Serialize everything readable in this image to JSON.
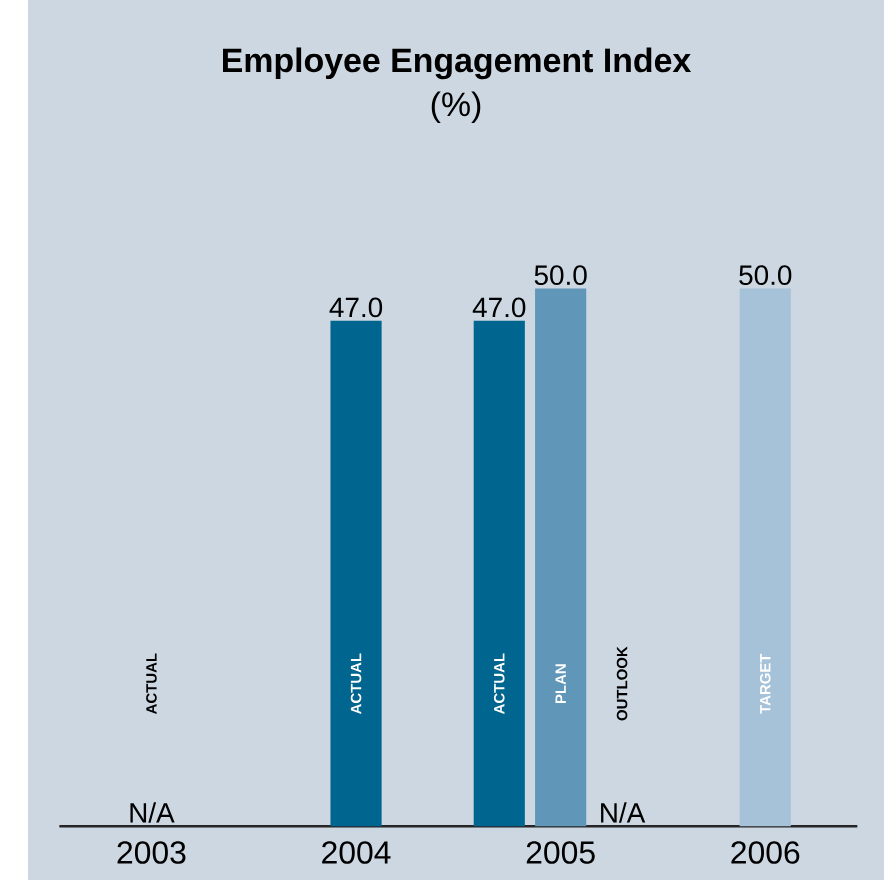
{
  "chart_data": {
    "type": "bar",
    "title": "Employee Engagement Index",
    "subtitle": "(%)",
    "categories": [
      "2003",
      "2004",
      "2005",
      "2006"
    ],
    "series": [
      {
        "name": "ACTUAL",
        "color": "#00668f",
        "values": [
          null,
          47.0,
          47.0,
          null
        ],
        "value_labels": [
          "N/A",
          "47.0",
          "47.0",
          null
        ]
      },
      {
        "name": "PLAN",
        "color": "#6096b8",
        "values": [
          null,
          null,
          50.0,
          null
        ],
        "value_labels": [
          null,
          null,
          "50.0",
          null
        ]
      },
      {
        "name": "OUTLOOK",
        "values": [
          null,
          null,
          null,
          null
        ],
        "value_labels": [
          null,
          null,
          "N/A",
          null
        ]
      },
      {
        "name": "TARGET",
        "color": "#a6c2d8",
        "values": [
          null,
          null,
          null,
          50.0
        ],
        "value_labels": [
          null,
          null,
          null,
          "50.0"
        ]
      }
    ]
  }
}
